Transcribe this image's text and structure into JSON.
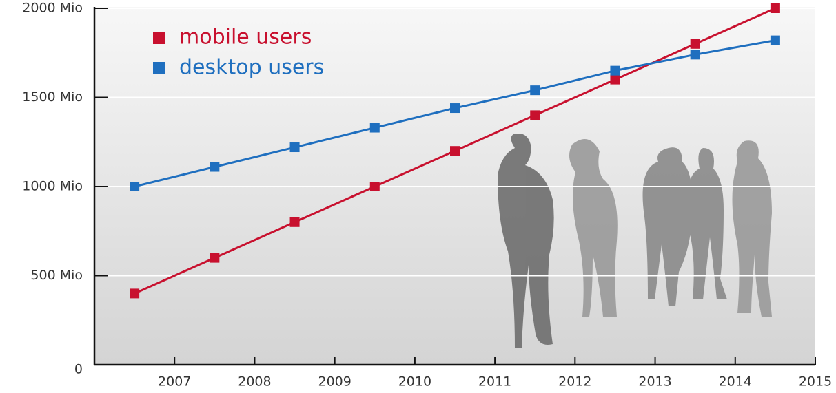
{
  "chart_data": {
    "type": "line",
    "x": [
      2006.5,
      2007.5,
      2008.5,
      2009.5,
      2010.5,
      2011.5,
      2012.5,
      2013.5,
      2014.5
    ],
    "series": [
      {
        "name": "mobile users",
        "color": "#c8102e",
        "values": [
          400,
          600,
          800,
          1000,
          1200,
          1400,
          1600,
          1800,
          2000
        ]
      },
      {
        "name": "desktop users",
        "color": "#1f6fbf",
        "values": [
          1000,
          1110,
          1220,
          1330,
          1440,
          1540,
          1650,
          1740,
          1820
        ]
      }
    ],
    "xlim": [
      2006,
      2015
    ],
    "xticks": [
      2007,
      2008,
      2009,
      2010,
      2011,
      2012,
      2013,
      2014,
      2015
    ],
    "ylim": [
      0,
      2000
    ],
    "yticks": [
      0,
      {
        "value": 500,
        "label": "500 Mio"
      },
      {
        "value": 1000,
        "label": "1000 Mio"
      },
      {
        "value": 1500,
        "label": "1500 Mio"
      },
      {
        "value": 2000,
        "label": "2000 Mio"
      }
    ],
    "grid": true,
    "legend": "upper left"
  }
}
